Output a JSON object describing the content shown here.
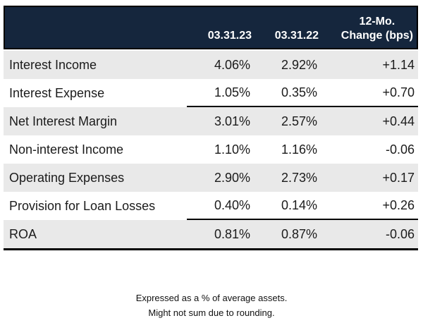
{
  "colors": {
    "header_bg": "#15263D",
    "header_text": "#FFFFFF",
    "stripe_bg": "#E9E9E9",
    "row_bg": "#FFFFFF",
    "rule_color": "#000000",
    "body_text": "#1B1B1B"
  },
  "table": {
    "header": {
      "col_2023": "03.31.23",
      "col_2022": "03.31.22",
      "change_line1": "12-Mo.",
      "change_line2": "Change (bps)"
    },
    "rows": [
      {
        "label": "Interest Income",
        "v2023": "4.06%",
        "v2022": "2.92%",
        "change": "+1.14"
      },
      {
        "label": "Interest Expense",
        "v2023": "1.05%",
        "v2022": "0.35%",
        "change": "+0.70"
      },
      {
        "label": "Net Interest Margin",
        "v2023": "3.01%",
        "v2022": "2.57%",
        "change": "+0.44"
      },
      {
        "label": "Non-interest Income",
        "v2023": "1.10%",
        "v2022": "1.16%",
        "change": "-0.06"
      },
      {
        "label": "Operating Expenses",
        "v2023": "2.90%",
        "v2022": "2.73%",
        "change": "+0.17"
      },
      {
        "label": "Provision for Loan Losses",
        "v2023": "0.40%",
        "v2022": "0.14%",
        "change": "+0.26"
      },
      {
        "label": "ROA",
        "v2023": "0.81%",
        "v2022": "0.87%",
        "change": "-0.06"
      }
    ]
  },
  "footnote": {
    "line1": "Expressed as a % of average assets.",
    "line2": "Might not sum due to rounding."
  },
  "chart_data": {
    "type": "table",
    "columns": [
      "",
      "03.31.23",
      "03.31.22",
      "12-Mo. Change (bps)"
    ],
    "rows": [
      [
        "Interest Income",
        4.06,
        2.92,
        1.14
      ],
      [
        "Interest Expense",
        1.05,
        0.35,
        0.7
      ],
      [
        "Net Interest Margin",
        3.01,
        2.57,
        0.44
      ],
      [
        "Non-interest Income",
        1.1,
        1.16,
        -0.06
      ],
      [
        "Operating Expenses",
        2.9,
        2.73,
        0.17
      ],
      [
        "Provision for Loan Losses",
        0.4,
        0.14,
        0.26
      ],
      [
        "ROA",
        0.81,
        0.87,
        -0.06
      ]
    ],
    "units": {
      "values": "% of average assets",
      "change": "bps"
    },
    "layout_hints": {
      "striped_rows": true,
      "sum_rule_above_rows": [
        "Net Interest Margin",
        "ROA"
      ],
      "header_bg": "#15263D",
      "values_alignment": "right"
    },
    "footnotes": [
      "Expressed as a % of average assets.",
      "Might not sum due to rounding."
    ]
  }
}
